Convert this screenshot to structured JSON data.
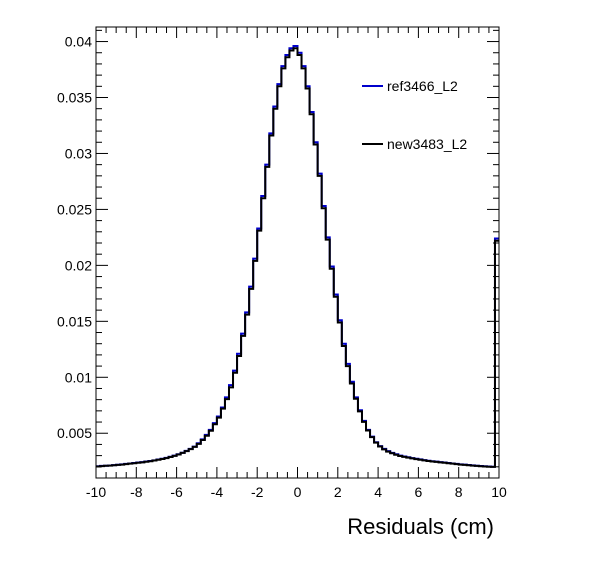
{
  "chart_data": {
    "type": "line",
    "style": "step-histogram",
    "title": "",
    "xlabel": "Residuals (cm)",
    "ylabel": "",
    "xlim": [
      -10,
      10
    ],
    "ylim": [
      0.001,
      0.0413
    ],
    "grid": false,
    "legend_position": "top-right",
    "x_ticks": [
      -10,
      -8,
      -6,
      -4,
      -2,
      0,
      2,
      4,
      6,
      8,
      10
    ],
    "x_tick_labels": [
      "-10",
      "-8",
      "-6",
      "-4",
      "-2",
      "0",
      "2",
      "4",
      "6",
      "8",
      "10"
    ],
    "y_ticks": [
      0.005,
      0.01,
      0.015,
      0.02,
      0.025,
      0.03,
      0.035,
      0.04
    ],
    "y_tick_labels": [
      "0.005",
      "0.01",
      "0.015",
      "0.02",
      "0.025",
      "0.03",
      "0.035",
      "0.04"
    ],
    "bin_edges_x": [
      -10,
      10
    ],
    "bin_count": 100,
    "series": [
      {
        "name": "ref3466_L2",
        "color": "#0000cc",
        "values": [
          0.00205,
          0.00208,
          0.0021,
          0.00212,
          0.00215,
          0.00218,
          0.00222,
          0.00226,
          0.0023,
          0.00234,
          0.00238,
          0.00242,
          0.00247,
          0.00252,
          0.00258,
          0.00265,
          0.00272,
          0.0028,
          0.0029,
          0.003,
          0.00312,
          0.00326,
          0.00342,
          0.0036,
          0.0038,
          0.0041,
          0.00445,
          0.00485,
          0.0053,
          0.0059,
          0.0065,
          0.0073,
          0.0082,
          0.0093,
          0.0106,
          0.0121,
          0.0139,
          0.0158,
          0.0181,
          0.0206,
          0.0233,
          0.0262,
          0.029,
          0.0318,
          0.0342,
          0.0362,
          0.0378,
          0.0388,
          0.0394,
          0.0396,
          0.039,
          0.0378,
          0.036,
          0.0337,
          0.031,
          0.0282,
          0.0253,
          0.0225,
          0.0199,
          0.0174,
          0.0151,
          0.013,
          0.0112,
          0.0096,
          0.0082,
          0.00705,
          0.0061,
          0.0053,
          0.0047,
          0.0042,
          0.00385,
          0.0036,
          0.0034,
          0.00325,
          0.00312,
          0.003,
          0.00292,
          0.00285,
          0.00278,
          0.00272,
          0.00266,
          0.0026,
          0.00254,
          0.0025,
          0.00246,
          0.00242,
          0.00238,
          0.00234,
          0.0023,
          0.00226,
          0.00222,
          0.00219,
          0.00216,
          0.00213,
          0.0021,
          0.00207,
          0.00205,
          0.00203,
          0.00201,
          0.0224
        ]
      },
      {
        "name": "new3483_L2",
        "color": "#000000",
        "values": [
          0.00203,
          0.00206,
          0.00209,
          0.00211,
          0.00214,
          0.00217,
          0.0022,
          0.00224,
          0.00228,
          0.00232,
          0.00236,
          0.0024,
          0.00245,
          0.0025,
          0.00256,
          0.00263,
          0.0027,
          0.00278,
          0.00288,
          0.00298,
          0.0031,
          0.00324,
          0.0034,
          0.00358,
          0.00378,
          0.00405,
          0.0044,
          0.00478,
          0.00522,
          0.0058,
          0.0064,
          0.0072,
          0.00805,
          0.0091,
          0.0104,
          0.0119,
          0.0137,
          0.0156,
          0.0179,
          0.0204,
          0.0231,
          0.026,
          0.0288,
          0.0316,
          0.034,
          0.036,
          0.0376,
          0.0386,
          0.0392,
          0.0394,
          0.0388,
          0.0376,
          0.0358,
          0.0335,
          0.0308,
          0.028,
          0.0251,
          0.0223,
          0.0197,
          0.0172,
          0.0149,
          0.0128,
          0.011,
          0.00945,
          0.00808,
          0.00695,
          0.00602,
          0.00524,
          0.00465,
          0.00416,
          0.00381,
          0.00356,
          0.00336,
          0.00321,
          0.00308,
          0.00297,
          0.00289,
          0.00282,
          0.00275,
          0.00269,
          0.00263,
          0.00257,
          0.00252,
          0.00248,
          0.00244,
          0.0024,
          0.00236,
          0.00232,
          0.00228,
          0.00224,
          0.0022,
          0.00217,
          0.00214,
          0.00211,
          0.00208,
          0.00205,
          0.00203,
          0.00201,
          0.00199,
          0.0222
        ]
      }
    ]
  }
}
